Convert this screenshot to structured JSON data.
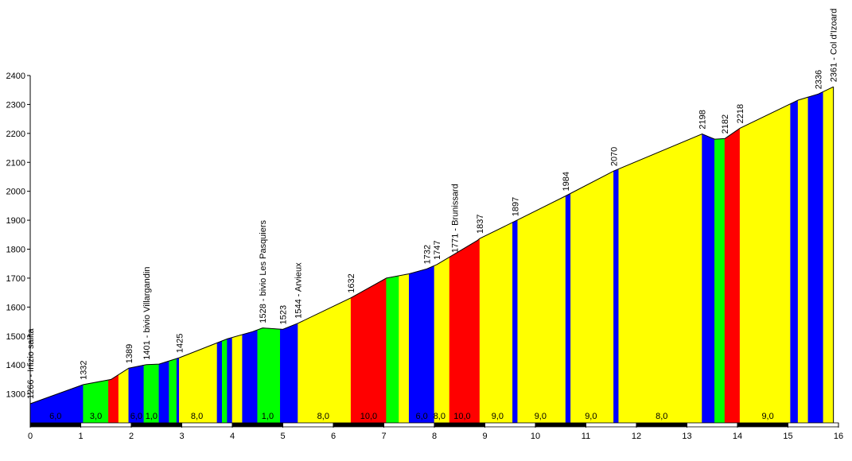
{
  "chart_data": {
    "type": "area",
    "title": "",
    "xlabel": "",
    "ylabel": "",
    "xlim": [
      0,
      16
    ],
    "ylim": [
      1200,
      2400
    ],
    "x_ticks": [
      0,
      1,
      2,
      3,
      4,
      5,
      6,
      7,
      8,
      9,
      10,
      11,
      12,
      13,
      14,
      15,
      16
    ],
    "y_ticks": [
      1300,
      1400,
      1500,
      1600,
      1700,
      1800,
      1900,
      2000,
      2100,
      2200,
      2300,
      2400
    ],
    "profile": [
      {
        "x": 0.0,
        "y": 1266
      },
      {
        "x": 1.05,
        "y": 1332
      },
      {
        "x": 1.6,
        "y": 1350
      },
      {
        "x": 1.95,
        "y": 1389
      },
      {
        "x": 2.3,
        "y": 1401
      },
      {
        "x": 2.55,
        "y": 1403
      },
      {
        "x": 2.95,
        "y": 1425
      },
      {
        "x": 3.9,
        "y": 1490
      },
      {
        "x": 4.4,
        "y": 1515
      },
      {
        "x": 4.6,
        "y": 1528
      },
      {
        "x": 5.0,
        "y": 1523
      },
      {
        "x": 5.3,
        "y": 1544
      },
      {
        "x": 6.35,
        "y": 1632
      },
      {
        "x": 7.05,
        "y": 1700
      },
      {
        "x": 7.5,
        "y": 1715
      },
      {
        "x": 7.85,
        "y": 1732
      },
      {
        "x": 8.05,
        "y": 1747
      },
      {
        "x": 8.85,
        "y": 1830
      },
      {
        "x": 8.9,
        "y": 1837
      },
      {
        "x": 9.6,
        "y": 1897
      },
      {
        "x": 10.6,
        "y": 1984
      },
      {
        "x": 11.55,
        "y": 2070
      },
      {
        "x": 13.3,
        "y": 2198
      },
      {
        "x": 13.55,
        "y": 2180
      },
      {
        "x": 13.75,
        "y": 2182
      },
      {
        "x": 14.05,
        "y": 2218
      },
      {
        "x": 15.2,
        "y": 2315
      },
      {
        "x": 15.6,
        "y": 2336
      },
      {
        "x": 15.9,
        "y": 2361
      }
    ],
    "segments": [
      {
        "from": 0.0,
        "to": 1.05,
        "color": "#0000ff"
      },
      {
        "from": 1.05,
        "to": 1.55,
        "color": "#00ff00"
      },
      {
        "from": 1.55,
        "to": 1.75,
        "color": "#ff0000"
      },
      {
        "from": 1.75,
        "to": 1.95,
        "color": "#ffff00"
      },
      {
        "from": 1.95,
        "to": 2.25,
        "color": "#0000ff"
      },
      {
        "from": 2.25,
        "to": 2.55,
        "color": "#00ff00"
      },
      {
        "from": 2.55,
        "to": 2.75,
        "color": "#0000ff"
      },
      {
        "from": 2.75,
        "to": 2.9,
        "color": "#00ff00"
      },
      {
        "from": 2.9,
        "to": 2.95,
        "color": "#0000ff"
      },
      {
        "from": 2.95,
        "to": 3.7,
        "color": "#ffff00"
      },
      {
        "from": 3.7,
        "to": 3.8,
        "color": "#0000ff"
      },
      {
        "from": 3.8,
        "to": 3.9,
        "color": "#00ff00"
      },
      {
        "from": 3.9,
        "to": 4.0,
        "color": "#0000ff"
      },
      {
        "from": 4.0,
        "to": 4.2,
        "color": "#ffff00"
      },
      {
        "from": 4.2,
        "to": 4.5,
        "color": "#0000ff"
      },
      {
        "from": 4.5,
        "to": 4.95,
        "color": "#00ff00"
      },
      {
        "from": 4.95,
        "to": 5.3,
        "color": "#0000ff"
      },
      {
        "from": 5.3,
        "to": 6.35,
        "color": "#ffff00"
      },
      {
        "from": 6.35,
        "to": 7.05,
        "color": "#ff0000"
      },
      {
        "from": 7.05,
        "to": 7.3,
        "color": "#00ff00"
      },
      {
        "from": 7.3,
        "to": 7.5,
        "color": "#ffff00"
      },
      {
        "from": 7.5,
        "to": 8.0,
        "color": "#0000ff"
      },
      {
        "from": 8.0,
        "to": 8.3,
        "color": "#ffff00"
      },
      {
        "from": 8.3,
        "to": 8.9,
        "color": "#ff0000"
      },
      {
        "from": 8.9,
        "to": 9.55,
        "color": "#ffff00"
      },
      {
        "from": 9.55,
        "to": 9.65,
        "color": "#0000ff"
      },
      {
        "from": 9.65,
        "to": 10.6,
        "color": "#ffff00"
      },
      {
        "from": 10.6,
        "to": 10.7,
        "color": "#0000ff"
      },
      {
        "from": 10.7,
        "to": 11.55,
        "color": "#ffff00"
      },
      {
        "from": 11.55,
        "to": 11.65,
        "color": "#0000ff"
      },
      {
        "from": 11.65,
        "to": 13.3,
        "color": "#ffff00"
      },
      {
        "from": 13.3,
        "to": 13.55,
        "color": "#0000ff"
      },
      {
        "from": 13.55,
        "to": 13.75,
        "color": "#00ff00"
      },
      {
        "from": 13.75,
        "to": 14.05,
        "color": "#ff0000"
      },
      {
        "from": 14.05,
        "to": 15.05,
        "color": "#ffff00"
      },
      {
        "from": 15.05,
        "to": 15.2,
        "color": "#0000ff"
      },
      {
        "from": 15.2,
        "to": 15.4,
        "color": "#ffff00"
      },
      {
        "from": 15.4,
        "to": 15.7,
        "color": "#0000ff"
      },
      {
        "from": 15.7,
        "to": 15.9,
        "color": "#ffff00"
      }
    ],
    "annotations": [
      {
        "x": 0.0,
        "y": 1266,
        "text": "1266 - Inizio salita"
      },
      {
        "x": 1.05,
        "y": 1332,
        "text": "1332"
      },
      {
        "x": 1.95,
        "y": 1389,
        "text": "1389"
      },
      {
        "x": 2.3,
        "y": 1401,
        "text": "1401 - bivio Villargandin"
      },
      {
        "x": 2.95,
        "y": 1425,
        "text": "1425"
      },
      {
        "x": 4.6,
        "y": 1528,
        "text": "1528 - bivio Les Pasquiers"
      },
      {
        "x": 5.0,
        "y": 1523,
        "text": "1523"
      },
      {
        "x": 5.3,
        "y": 1544,
        "text": "1544 - Arvieux"
      },
      {
        "x": 6.35,
        "y": 1632,
        "text": "1632"
      },
      {
        "x": 7.85,
        "y": 1732,
        "text": "1732"
      },
      {
        "x": 8.05,
        "y": 1747,
        "text": "1747"
      },
      {
        "x": 8.4,
        "y": 1771,
        "text": "1771 - Brunissard"
      },
      {
        "x": 8.9,
        "y": 1837,
        "text": "1837"
      },
      {
        "x": 9.6,
        "y": 1897,
        "text": "1897"
      },
      {
        "x": 10.6,
        "y": 1984,
        "text": "1984"
      },
      {
        "x": 11.55,
        "y": 2070,
        "text": "2070"
      },
      {
        "x": 13.3,
        "y": 2198,
        "text": "2198"
      },
      {
        "x": 13.75,
        "y": 2182,
        "text": "2182"
      },
      {
        "x": 14.05,
        "y": 2218,
        "text": "2218"
      },
      {
        "x": 15.6,
        "y": 2336,
        "text": "2336"
      },
      {
        "x": 15.9,
        "y": 2361,
        "text": "2361 - Col d'Izoard"
      }
    ],
    "gradient_labels": [
      {
        "x": 0.5,
        "text": "6,0"
      },
      {
        "x": 1.3,
        "text": "3,0"
      },
      {
        "x": 2.1,
        "text": "6,0"
      },
      {
        "x": 2.4,
        "text": "1,0"
      },
      {
        "x": 3.3,
        "text": "8,0"
      },
      {
        "x": 4.7,
        "text": "1,0"
      },
      {
        "x": 5.8,
        "text": "8,0"
      },
      {
        "x": 6.7,
        "text": "10,0"
      },
      {
        "x": 7.75,
        "text": "6,0"
      },
      {
        "x": 8.1,
        "text": "8,0"
      },
      {
        "x": 8.55,
        "text": "10,0"
      },
      {
        "x": 9.25,
        "text": "9,0"
      },
      {
        "x": 10.1,
        "text": "9,0"
      },
      {
        "x": 11.1,
        "text": "9,0"
      },
      {
        "x": 12.5,
        "text": "8,0"
      },
      {
        "x": 14.6,
        "text": "9,0"
      }
    ]
  }
}
